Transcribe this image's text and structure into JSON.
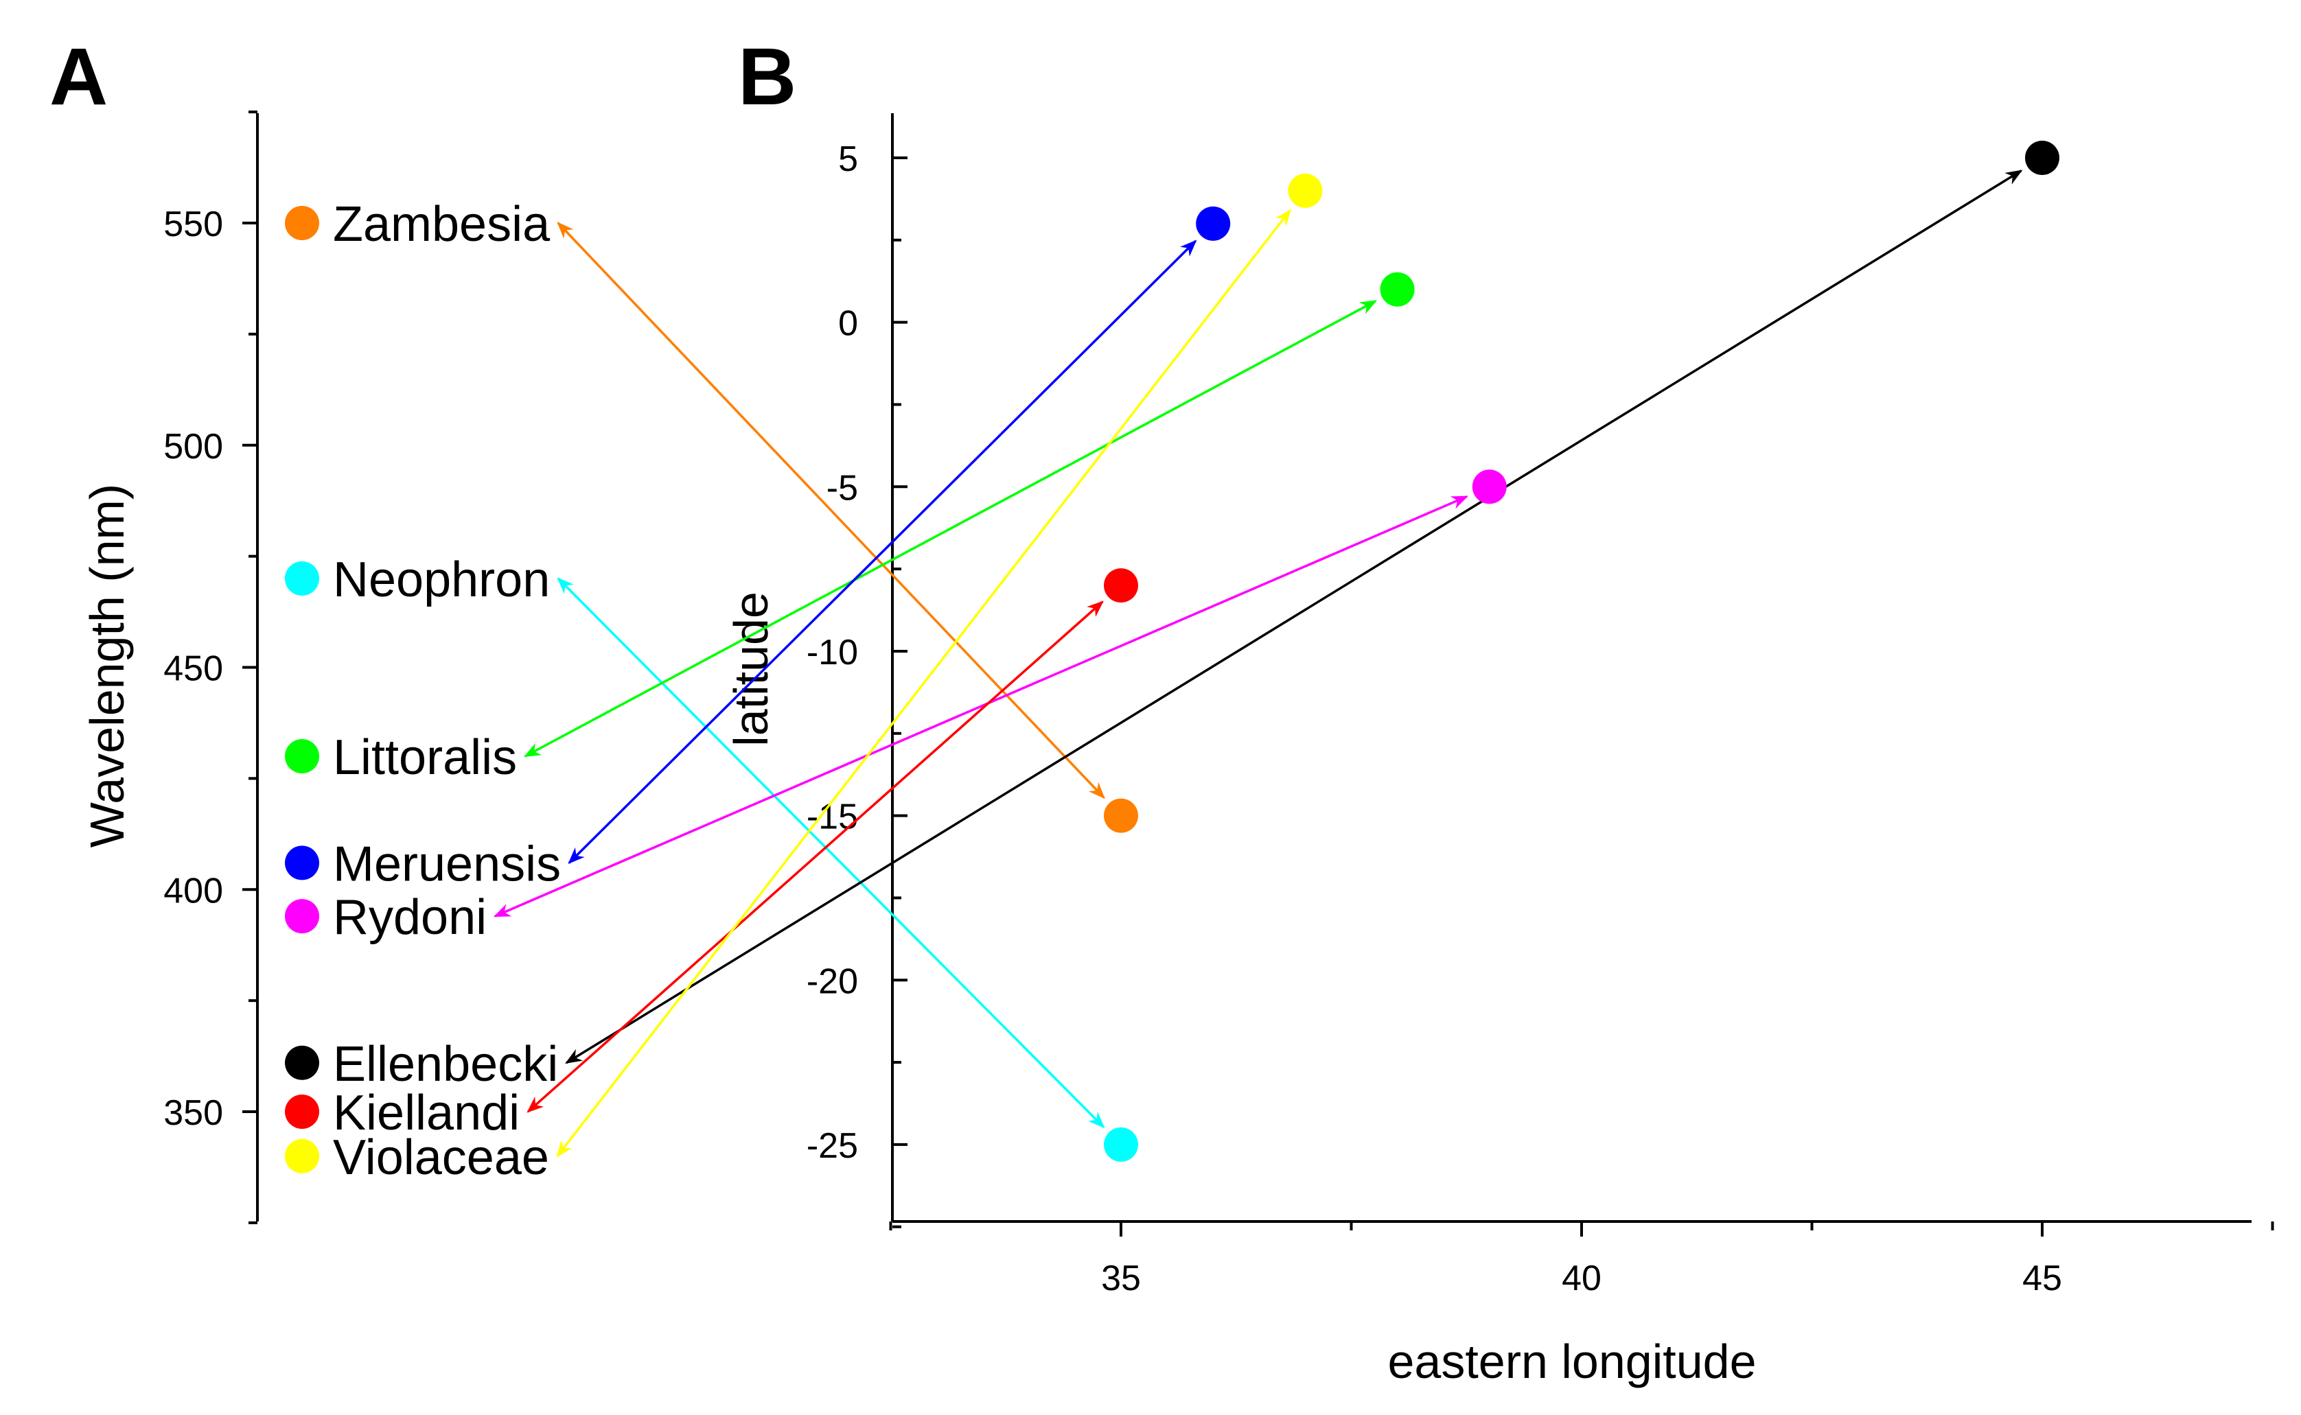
{
  "chart_data": [
    {
      "panel": "A",
      "type": "scatter",
      "title": "",
      "ylabel": "Wavelength (nm)",
      "xlabel": "",
      "ylim": [
        325,
        575
      ],
      "yticks": [
        350,
        400,
        450,
        500,
        550
      ],
      "series": [
        {
          "name": "Zambesia",
          "color": "#ff7f00",
          "wavelength": 550
        },
        {
          "name": "Neophron",
          "color": "#00ffff",
          "wavelength": 470
        },
        {
          "name": "Littoralis",
          "color": "#00ff00",
          "wavelength": 430
        },
        {
          "name": "Meruensis",
          "color": "#0000ff",
          "wavelength": 406
        },
        {
          "name": "Rydoni",
          "color": "#ff00ff",
          "wavelength": 394
        },
        {
          "name": "Ellenbecki",
          "color": "#000000",
          "wavelength": 361
        },
        {
          "name": "Kiellandi",
          "color": "#ff0000",
          "wavelength": 350
        },
        {
          "name": "Violaceae",
          "color": "#ffff00",
          "wavelength": 340
        }
      ]
    },
    {
      "panel": "B",
      "type": "scatter",
      "title": "",
      "xlabel": "eastern longitude",
      "ylabel": "latitude",
      "xlim": [
        32.5,
        47.5
      ],
      "ylim": [
        -27.5,
        6.2
      ],
      "xticks": [
        35,
        40,
        45
      ],
      "yticks": [
        5,
        0,
        -5,
        -10,
        -15,
        -20,
        -25
      ],
      "points": [
        {
          "name": "Zambesia",
          "color": "#ff7f00",
          "longitude": 35,
          "latitude": -15
        },
        {
          "name": "Neophron",
          "color": "#00ffff",
          "longitude": 35,
          "latitude": -25
        },
        {
          "name": "Littoralis",
          "color": "#00ff00",
          "longitude": 38,
          "latitude": 1
        },
        {
          "name": "Meruensis",
          "color": "#0000ff",
          "longitude": 36,
          "latitude": 3
        },
        {
          "name": "Rydoni",
          "color": "#ff00ff",
          "longitude": 39,
          "latitude": -5
        },
        {
          "name": "Ellenbecki",
          "color": "#000000",
          "longitude": 45,
          "latitude": 5
        },
        {
          "name": "Kiellandi",
          "color": "#ff0000",
          "longitude": 35,
          "latitude": -8
        },
        {
          "name": "Violaceae",
          "color": "#ffff00",
          "longitude": 37,
          "latitude": 4
        }
      ]
    }
  ]
}
